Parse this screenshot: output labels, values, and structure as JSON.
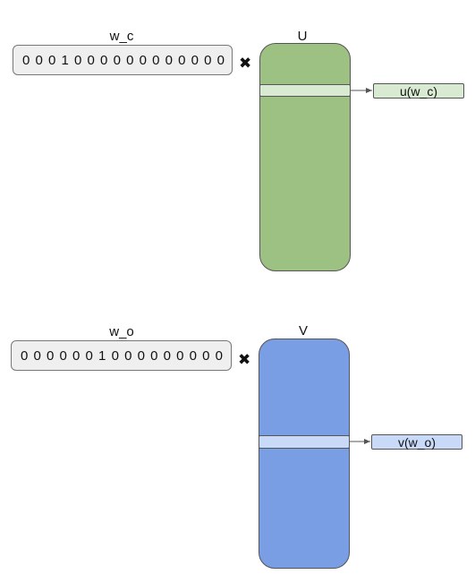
{
  "colors": {
    "u_matrix": "#9dc183",
    "u_row": "#d9ead3",
    "v_matrix": "#799ee3",
    "v_row": "#c9daf8"
  },
  "top": {
    "vector_label": "w_c",
    "vector_value": "0 0 0 1 0 0 0 0 0 0 0 0 0 0 0 0",
    "multiply_icon": "✖",
    "matrix_label": "U",
    "output_label": "u(w_c)"
  },
  "bottom": {
    "vector_label": "w_o",
    "vector_value": "0 0 0 0 0 0 1 0 0 0 0 0 0 0 0 0",
    "multiply_icon": "✖",
    "matrix_label": "V",
    "output_label": "v(w_o)"
  }
}
